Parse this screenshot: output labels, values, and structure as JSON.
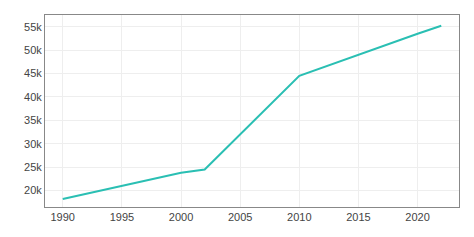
{
  "chart_data": {
    "type": "line",
    "x": [
      1990,
      2000,
      2002,
      2005,
      2010,
      2020,
      2022
    ],
    "values": [
      18200,
      23800,
      24500,
      32000,
      44500,
      53500,
      55200
    ],
    "color": "#2abfb3",
    "xlim": [
      1988.5,
      2023.5
    ],
    "ylim": [
      16500,
      57500
    ],
    "xticks": [
      1990,
      1995,
      2000,
      2005,
      2010,
      2015,
      2020
    ],
    "yticks": [
      {
        "value": 20000,
        "label": "20k"
      },
      {
        "value": 25000,
        "label": "25k"
      },
      {
        "value": 30000,
        "label": "30k"
      },
      {
        "value": 35000,
        "label": "35k"
      },
      {
        "value": 40000,
        "label": "40k"
      },
      {
        "value": 45000,
        "label": "45k"
      },
      {
        "value": 50000,
        "label": "50k"
      },
      {
        "value": 55000,
        "label": "55k"
      }
    ],
    "grid": true
  }
}
